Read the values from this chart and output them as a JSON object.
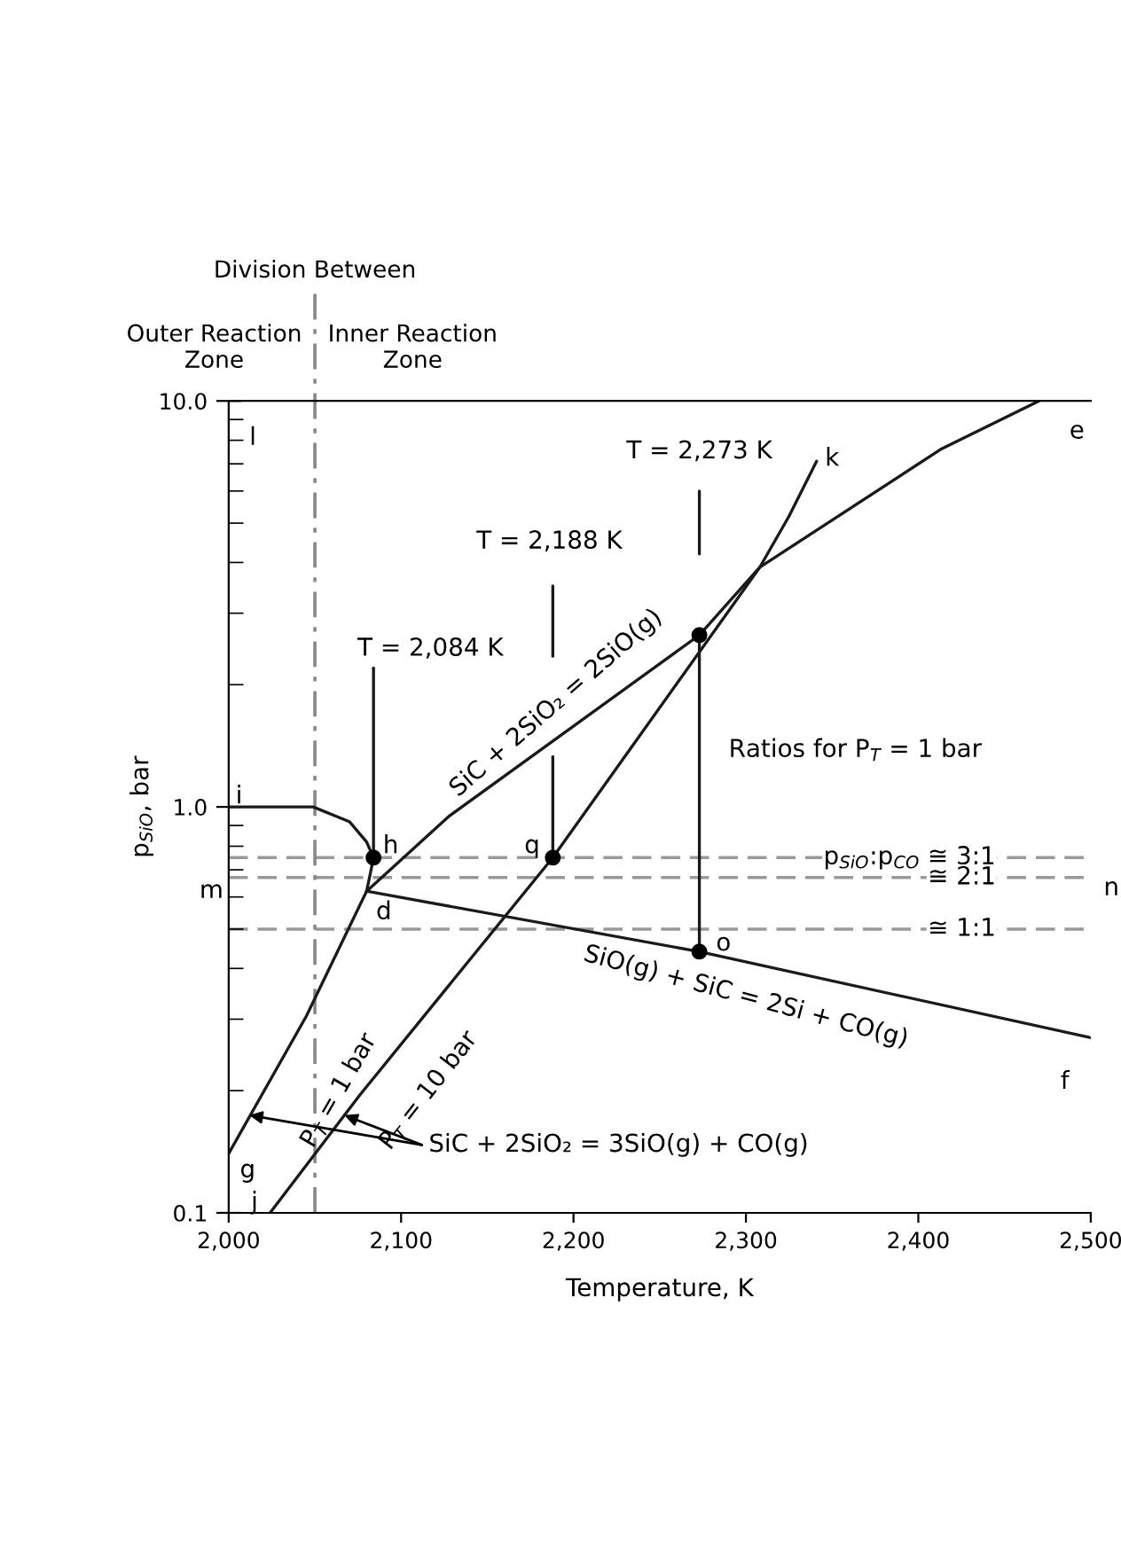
{
  "chart_data": {
    "type": "line",
    "xlabel": "Temperature, K",
    "ylabel": "p$_{SiO}$, bar",
    "log": "y",
    "xlim": [
      2000,
      2500
    ],
    "ylim": [
      0.1,
      10
    ],
    "xticks": [
      {
        "value": 2000,
        "label": "2,000"
      },
      {
        "value": 2100,
        "label": "2,100"
      },
      {
        "value": 2200,
        "label": "2,200"
      },
      {
        "value": 2300,
        "label": "2,300"
      },
      {
        "value": 2400,
        "label": "2,400"
      },
      {
        "value": 2500,
        "label": "2,500"
      }
    ],
    "yticks": [
      {
        "value": 0.1,
        "label": "0.1"
      },
      {
        "value": 1,
        "label": "1.0"
      },
      {
        "value": 10,
        "label": "10.0"
      }
    ],
    "grid": false,
    "line_style": "solid",
    "series": [
      {
        "color": "#1a1a1a",
        "x": [
          2080,
          2128,
          2273,
          2308,
          2413,
          2470
        ],
        "values": [
          0.62,
          0.95,
          2.65,
          3.89,
          7.6,
          10
        ]
      },
      {
        "color": "#1a1a1a",
        "x": [
          2024,
          2076,
          2188,
          2308,
          2325,
          2341
        ],
        "values": [
          0.1,
          0.195,
          0.75,
          3.89,
          5.2,
          7.1
        ]
      },
      {
        "color": "#1a1a1a",
        "x": [
          2000,
          2049,
          2070,
          2080,
          2084,
          2082,
          2080,
          2045,
          2000
        ],
        "values": [
          1.0,
          1.0,
          0.92,
          0.82,
          0.75,
          0.68,
          0.62,
          0.305,
          0.14
        ]
      },
      {
        "color": "#1a1a1a",
        "x": [
          2080,
          2273,
          2500
        ],
        "values": [
          0.62,
          0.44,
          0.27
        ]
      },
      {
        "color": "#1a1a1a",
        "x": [
          2084,
          2084
        ],
        "values": [
          2.2,
          0.75
        ]
      },
      {
        "color": "#1a1a1a",
        "x": [
          2188,
          2188
        ],
        "values": [
          3.5,
          2.35
        ]
      },
      {
        "color": "#1a1a1a",
        "x": [
          2188,
          2188
        ],
        "values": [
          1.33,
          0.75
        ]
      },
      {
        "color": "#1a1a1a",
        "x": [
          2273,
          2273
        ],
        "values": [
          6.0,
          4.2
        ]
      },
      {
        "color": "#1a1a1a",
        "x": [
          2273,
          2273
        ],
        "values": [
          2.65,
          0.44
        ]
      },
      {
        "type": "scatter",
        "marker": "circle",
        "color": "#000000",
        "x": [
          2084,
          2188,
          2273,
          2273
        ],
        "values": [
          0.75,
          0.75,
          2.65,
          0.44
        ]
      }
    ],
    "ref_lines": [
      {
        "axis": "y",
        "value": 0.75,
        "label": "p$_{SiO}$:p$_{CO}$ ≅ 3:1",
        "color": "#999999",
        "line_style": "dashed"
      },
      {
        "axis": "y",
        "value": 0.67,
        "label": "≅ 2:1",
        "color": "#999999",
        "line_style": "dashed"
      },
      {
        "axis": "y",
        "value": 0.5,
        "label": "≅ 1:1",
        "color": "#999999",
        "line_style": "dashed"
      },
      {
        "axis": "x",
        "value": 2050,
        "label": null,
        "color": "#888888",
        "line_style": "dashdot"
      }
    ],
    "annotations": [
      "Division Between",
      "Outer Reaction\nZone",
      "Inner Reaction\nZone",
      "l",
      "i",
      "h",
      "q",
      "d",
      "m",
      "n",
      "o",
      "k",
      "e",
      "f",
      "g",
      "j",
      "T = 2,084 K",
      "T = 2,188 K",
      "T = 2,273 K",
      "SiC + 2SiO₂ = 2SiO(g)",
      "SiO(g) + SiC = 2Si + CO(g)",
      "P$_{T}$ = 1 bar",
      "P$_{T}$ = 10 bar",
      "Ratios for P$_{T}$ = 1 bar",
      {
        "text": "SiC + 2SiO₂ = 3SiO(g) + CO(g)",
        "x": 2012,
        "y": 0.174
      }
    ]
  }
}
